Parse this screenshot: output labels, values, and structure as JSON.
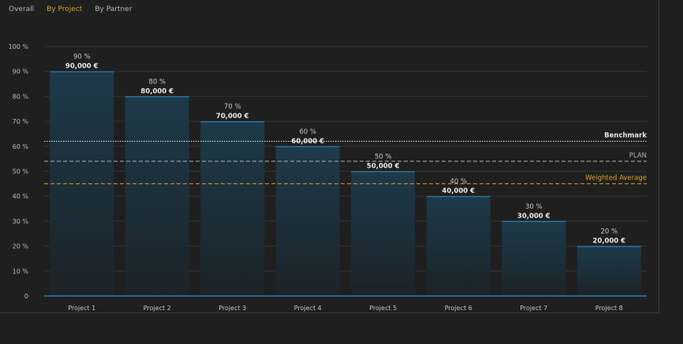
{
  "tabs": [
    {
      "label": "Overall",
      "active": false
    },
    {
      "label": "By Project",
      "active": true
    },
    {
      "label": "By Partner",
      "active": false
    }
  ],
  "colors": {
    "accent": "#e0a020",
    "bar_top": "#1d3a4a",
    "bar_bottom": "#1c2328",
    "bar_edge": "#2a7fb0",
    "benchmark": "#e6e6e6",
    "plan": "#b0b0b0",
    "weighted": "#e0a020"
  },
  "chart_data": {
    "type": "bar",
    "title": "",
    "xlabel": "",
    "ylabel": "",
    "ylim": [
      0,
      100
    ],
    "yticks": [
      {
        "value": 0,
        "label": "0"
      },
      {
        "value": 10,
        "label": "10 %"
      },
      {
        "value": 20,
        "label": "20 %"
      },
      {
        "value": 30,
        "label": "30 %"
      },
      {
        "value": 40,
        "label": "40 %"
      },
      {
        "value": 50,
        "label": "50 %"
      },
      {
        "value": 60,
        "label": "60 %"
      },
      {
        "value": 70,
        "label": "70 %"
      },
      {
        "value": 80,
        "label": "80 %"
      },
      {
        "value": 90,
        "label": "90 %"
      },
      {
        "value": 100,
        "label": "100 %"
      }
    ],
    "grid": true,
    "categories": [
      "Project 1",
      "Project 2",
      "Project 3",
      "Project 4",
      "Project 5",
      "Project 6",
      "Project 7",
      "Project 8"
    ],
    "values": [
      90,
      80,
      70,
      60,
      50,
      40,
      30,
      20
    ],
    "percent_labels": [
      "90 %",
      "80 %",
      "70 %",
      "60 %",
      "50 %",
      "40 %",
      "30 %",
      "20 %"
    ],
    "amount_labels": [
      "90,000 €",
      "80,000 €",
      "70,000 €",
      "60,000 €",
      "50,000 €",
      "40,000 €",
      "30,000 €",
      "20,000 €"
    ],
    "reference_lines": [
      {
        "name": "Benchmark",
        "value": 62,
        "style": "dotted",
        "color_key": "benchmark"
      },
      {
        "name": "PLAN",
        "value": 54,
        "style": "dashed",
        "color_key": "plan"
      },
      {
        "name": "Weighted Average",
        "value": 45,
        "style": "dashed",
        "color_key": "weighted"
      }
    ]
  }
}
